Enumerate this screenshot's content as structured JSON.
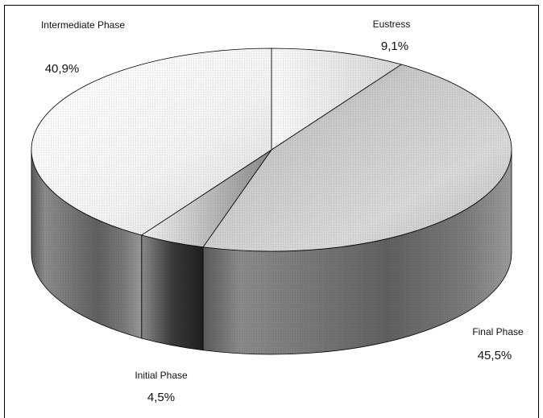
{
  "chart_data": {
    "type": "pie",
    "style": "3d",
    "labels": [
      "Eustress",
      "Final Phase",
      "Initial Phase",
      "Intermediate Phase"
    ],
    "values": [
      9.1,
      45.5,
      4.5,
      40.9
    ],
    "value_labels": [
      "9,1%",
      "45,5%",
      "4,5%",
      "40,9%"
    ],
    "legend": "none",
    "colors": [
      "#e4e4e4",
      "#9a9a9a",
      "#3a3a3a",
      "#f4f4f4"
    ]
  }
}
